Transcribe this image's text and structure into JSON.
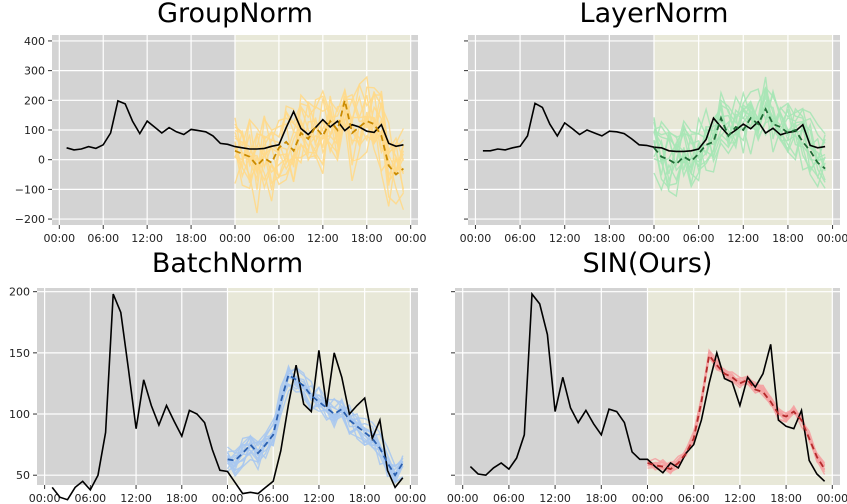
{
  "figure": {
    "x_tick_labels": [
      "00:00",
      "06:00",
      "12:00",
      "18:00",
      "00:00",
      "06:00",
      "12:00",
      "18:00",
      "00:00"
    ],
    "colors": {
      "history_bg": "#d3d3d3",
      "forecast_bg": "#e8e8d8",
      "grid": "#ffffff",
      "ground_truth": "#000000",
      "groupnorm_samples": "#ffd98a",
      "groupnorm_mean": "#c98a00",
      "layernorm_samples": "#a7e6b6",
      "layernorm_mean": "#1f6b35",
      "batchnorm_samples": "#a8c8f0",
      "batchnorm_mean": "#2a5fae",
      "sin_samples": "#f4a3a3",
      "sin_mean": "#b52a2a"
    }
  },
  "chart_data": [
    {
      "type": "line",
      "title": "GroupNorm",
      "xlabel": "",
      "ylabel": "",
      "x_ticks": [
        "00:00",
        "06:00",
        "12:00",
        "18:00",
        "00:00",
        "06:00",
        "12:00",
        "18:00",
        "00:00"
      ],
      "ylim": [
        -220,
        420
      ],
      "y_ticks": [
        -200,
        -100,
        0,
        100,
        200,
        300,
        400
      ],
      "forecast_start_hour": 24,
      "series": [
        {
          "role": "ground_truth",
          "x": [
            1,
            2,
            3,
            4,
            5,
            6,
            7,
            8,
            9,
            10,
            11,
            12,
            13,
            14,
            15,
            16,
            17,
            18,
            19,
            20,
            21,
            22,
            23,
            24,
            25,
            26,
            27,
            28,
            29,
            30,
            31,
            32,
            33,
            34,
            35,
            36,
            37,
            38,
            39,
            40,
            41,
            42,
            43,
            44,
            45,
            46,
            47
          ],
          "values": [
            40,
            33,
            36,
            44,
            38,
            50,
            90,
            198,
            188,
            130,
            88,
            130,
            110,
            90,
            108,
            94,
            85,
            102,
            98,
            94,
            80,
            55,
            52,
            44,
            40,
            36,
            36,
            38,
            45,
            50,
            108,
            162,
            105,
            85,
            108,
            135,
            110,
            130,
            98,
            118,
            110,
            96,
            92,
            118,
            55,
            45,
            50
          ]
        },
        {
          "role": "sample_mean",
          "x": [
            24,
            25,
            26,
            27,
            28,
            29,
            30,
            31,
            32,
            33,
            34,
            35,
            36,
            37,
            38,
            39,
            40,
            41,
            42,
            43,
            44,
            45,
            46,
            47
          ],
          "values": [
            30,
            20,
            10,
            -20,
            5,
            -10,
            40,
            60,
            30,
            90,
            70,
            110,
            80,
            130,
            100,
            200,
            90,
            110,
            130,
            120,
            80,
            -20,
            -50,
            -30
          ]
        }
      ]
    },
    {
      "type": "line",
      "title": "LayerNorm",
      "xlabel": "",
      "ylabel": "",
      "x_ticks": [
        "00:00",
        "06:00",
        "12:00",
        "18:00",
        "00:00",
        "06:00",
        "12:00",
        "18:00",
        "00:00"
      ],
      "ylim": [
        -220,
        420
      ],
      "y_ticks": [],
      "forecast_start_hour": 24,
      "series": [
        {
          "role": "ground_truth",
          "x": [
            1,
            2,
            3,
            4,
            5,
            6,
            7,
            8,
            9,
            10,
            11,
            12,
            13,
            14,
            15,
            16,
            17,
            18,
            19,
            20,
            21,
            22,
            23,
            24,
            25,
            26,
            27,
            28,
            29,
            30,
            31,
            32,
            33,
            34,
            35,
            36,
            37,
            38,
            39,
            40,
            41,
            42,
            43,
            44,
            45,
            46,
            47
          ],
          "values": [
            30,
            30,
            36,
            33,
            40,
            45,
            80,
            190,
            176,
            120,
            80,
            124,
            105,
            85,
            100,
            90,
            80,
            96,
            94,
            88,
            70,
            50,
            48,
            42,
            40,
            30,
            28,
            28,
            30,
            36,
            68,
            140,
            110,
            82,
            100,
            120,
            104,
            128,
            90,
            106,
            84,
            92,
            96,
            118,
            48,
            40,
            44
          ]
        },
        {
          "role": "sample_mean",
          "x": [
            24,
            25,
            26,
            27,
            28,
            29,
            30,
            31,
            32,
            33,
            34,
            35,
            36,
            37,
            38,
            39,
            40,
            41,
            42,
            43,
            44,
            45,
            46,
            47
          ],
          "values": [
            40,
            10,
            0,
            -15,
            10,
            -5,
            20,
            50,
            60,
            140,
            80,
            110,
            100,
            140,
            120,
            170,
            120,
            110,
            90,
            100,
            60,
            30,
            -10,
            -30
          ]
        }
      ]
    },
    {
      "type": "line",
      "title": "BatchNorm",
      "xlabel": "",
      "ylabel": "",
      "x_ticks": [
        "00:00",
        "06:00",
        "12:00",
        "18:00",
        "00:00",
        "06:00",
        "12:00",
        "18:00",
        "00:00"
      ],
      "ylim": [
        42,
        203
      ],
      "y_ticks": [
        50,
        100,
        150,
        200
      ],
      "forecast_start_hour": 24,
      "series": [
        {
          "role": "ground_truth",
          "x": [
            1,
            2,
            3,
            4,
            5,
            6,
            7,
            8,
            9,
            10,
            11,
            12,
            13,
            14,
            15,
            16,
            17,
            18,
            19,
            20,
            21,
            22,
            23,
            24,
            25,
            26,
            27,
            28,
            29,
            30,
            31,
            32,
            33,
            34,
            35,
            36,
            37,
            38,
            39,
            40,
            41,
            42,
            43,
            44,
            45,
            46,
            47
          ],
          "values": [
            40,
            32,
            30,
            40,
            45,
            38,
            50,
            85,
            198,
            183,
            137,
            88,
            128,
            107,
            91,
            107,
            94,
            82,
            103,
            100,
            93,
            71,
            54,
            53,
            44,
            35,
            36,
            35,
            40,
            45,
            70,
            108,
            140,
            108,
            102,
            152,
            106,
            150,
            130,
            100,
            107,
            113,
            80,
            95,
            54,
            40,
            48
          ]
        },
        {
          "role": "sample_mean",
          "x": [
            24,
            25,
            26,
            27,
            28,
            29,
            30,
            31,
            32,
            33,
            34,
            35,
            36,
            37,
            38,
            39,
            40,
            41,
            42,
            43,
            44,
            45,
            46,
            47
          ],
          "values": [
            63,
            62,
            68,
            75,
            68,
            75,
            83,
            110,
            132,
            128,
            123,
            115,
            110,
            105,
            100,
            104,
            95,
            90,
            85,
            80,
            72,
            60,
            50,
            60
          ]
        }
      ]
    },
    {
      "type": "line",
      "title": "SIN(Ours)",
      "xlabel": "",
      "ylabel": "",
      "x_ticks": [
        "00:00",
        "06:00",
        "12:00",
        "18:00",
        "00:00",
        "06:00",
        "12:00",
        "18:00",
        "00:00"
      ],
      "ylim": [
        42,
        203
      ],
      "y_ticks": [],
      "forecast_start_hour": 24,
      "series": [
        {
          "role": "ground_truth",
          "x": [
            1,
            2,
            3,
            4,
            5,
            6,
            7,
            8,
            9,
            10,
            11,
            12,
            13,
            14,
            15,
            16,
            17,
            18,
            19,
            20,
            21,
            22,
            23,
            24,
            25,
            26,
            27,
            28,
            29,
            30,
            31,
            32,
            33,
            34,
            35,
            36,
            37,
            38,
            39,
            40,
            41,
            42,
            43,
            44,
            45,
            46,
            47
          ],
          "values": [
            57,
            51,
            50,
            56,
            60,
            55,
            64,
            83,
            198,
            190,
            165,
            102,
            130,
            105,
            93,
            103,
            92,
            83,
            104,
            102,
            93,
            69,
            63,
            63,
            57,
            52,
            60,
            56,
            68,
            75,
            95,
            125,
            150,
            129,
            126,
            107,
            130,
            122,
            133,
            157,
            95,
            90,
            88,
            103,
            62,
            51,
            45
          ]
        },
        {
          "role": "sample_mean",
          "x": [
            24,
            25,
            26,
            27,
            28,
            29,
            30,
            31,
            32,
            33,
            34,
            35,
            36,
            37,
            38,
            39,
            40,
            41,
            42,
            43,
            44,
            45,
            46,
            47
          ],
          "values": [
            60,
            58,
            57,
            55,
            60,
            68,
            80,
            110,
            148,
            140,
            133,
            130,
            125,
            128,
            120,
            118,
            110,
            100,
            98,
            102,
            95,
            80,
            65,
            55
          ]
        }
      ]
    }
  ]
}
